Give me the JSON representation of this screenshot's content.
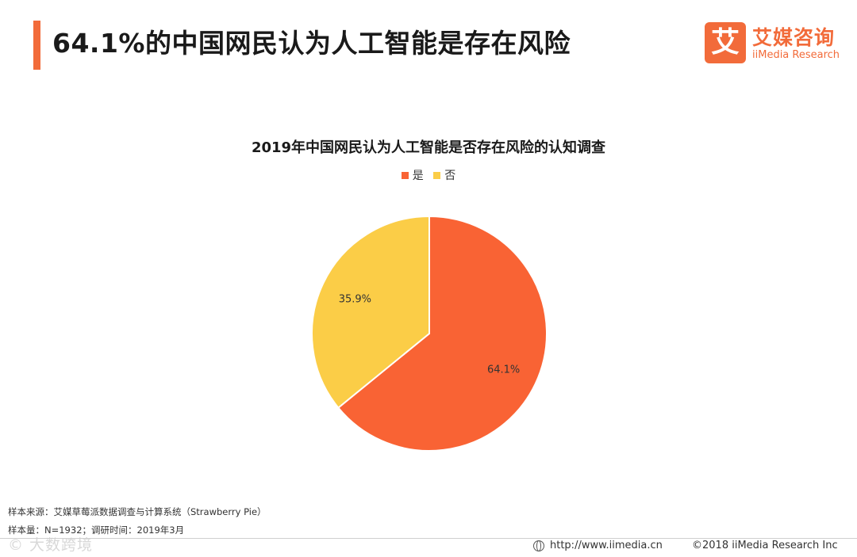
{
  "header": {
    "title": "64.1%的中国网民认为人工智能是存在风险",
    "accent_color": "#f26b3a"
  },
  "brand": {
    "mark": "艾",
    "name_cn": "艾媒咨询",
    "name_en": "iiMedia Research",
    "color": "#f26b3a"
  },
  "chart_data": {
    "type": "pie",
    "title": "2019年中国网民认为人工智能是否存在风险的认知调查",
    "legend_position": "top-center",
    "slices": [
      {
        "label": "是",
        "value": 64.1,
        "display": "64.1%",
        "color": "#f96334"
      },
      {
        "label": "否",
        "value": 35.9,
        "display": "35.9%",
        "color": "#fbcd47"
      }
    ]
  },
  "footer": {
    "source": "样本来源：艾媒草莓派数据调查与计算系统（Strawberry Pie）",
    "sample": "样本量：N=1932；调研时间：2019年3月",
    "watermark": "© 大数跨境",
    "url": "http://www.iimedia.cn",
    "copyright": "©2018  iiMedia Research  Inc"
  }
}
